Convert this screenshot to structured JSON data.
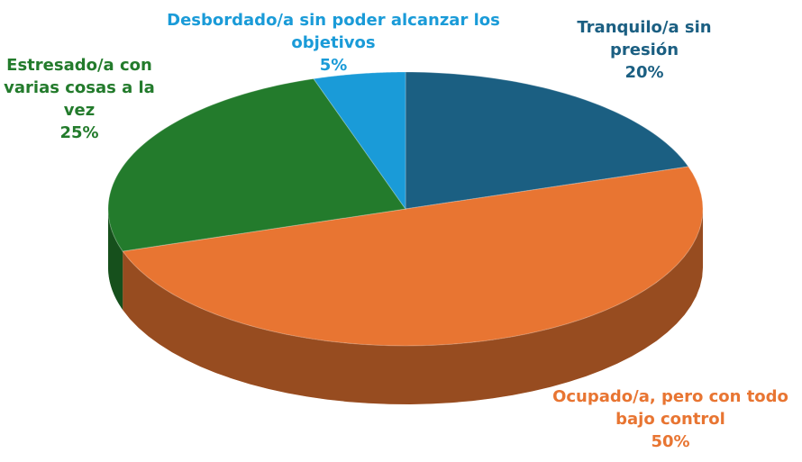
{
  "chart_data": {
    "type": "pie",
    "categories": [
      "Tranquilo/a sin presión",
      "Ocupado/a, pero con todo bajo control",
      "Estresado/a con varias cosas a la vez",
      "Desbordado/a sin poder alcanzar los objetivos"
    ],
    "values": [
      20,
      50,
      25,
      5
    ],
    "value_labels": [
      "20%",
      "50%",
      "25%",
      "5%"
    ],
    "colors": [
      "#1b5f82",
      "#e87532",
      "#237b2c",
      "#1a9bd8"
    ]
  }
}
